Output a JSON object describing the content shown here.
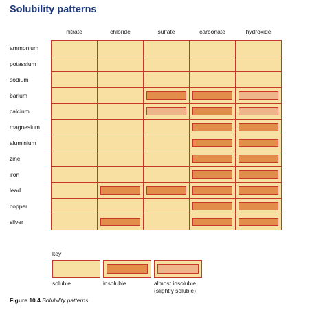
{
  "title": "Solubility patterns",
  "columns": [
    "nitrate",
    "chloride",
    "sulfate",
    "carbonate",
    "hydroxide"
  ],
  "rows": [
    {
      "label": "ammonium",
      "cells": [
        "soluble",
        "soluble",
        "soluble",
        "soluble",
        "soluble"
      ]
    },
    {
      "label": "potassium",
      "cells": [
        "soluble",
        "soluble",
        "soluble",
        "soluble",
        "soluble"
      ]
    },
    {
      "label": "sodium",
      "cells": [
        "soluble",
        "soluble",
        "soluble",
        "soluble",
        "soluble"
      ]
    },
    {
      "label": "barium",
      "cells": [
        "soluble",
        "soluble",
        "insoluble",
        "insoluble",
        "almost"
      ]
    },
    {
      "label": "calcium",
      "cells": [
        "soluble",
        "soluble",
        "almost",
        "insoluble",
        "almost"
      ]
    },
    {
      "label": "magnesium",
      "cells": [
        "soluble",
        "soluble",
        "soluble",
        "insoluble",
        "insoluble"
      ]
    },
    {
      "label": "aluminium",
      "cells": [
        "soluble",
        "soluble",
        "soluble",
        "insoluble",
        "insoluble"
      ]
    },
    {
      "label": "zinc",
      "cells": [
        "soluble",
        "soluble",
        "soluble",
        "insoluble",
        "insoluble"
      ]
    },
    {
      "label": "iron",
      "cells": [
        "soluble",
        "soluble",
        "soluble",
        "insoluble",
        "insoluble"
      ]
    },
    {
      "label": "lead",
      "cells": [
        "soluble",
        "insoluble",
        "insoluble",
        "insoluble",
        "insoluble"
      ]
    },
    {
      "label": "copper",
      "cells": [
        "soluble",
        "soluble",
        "soluble",
        "insoluble",
        "insoluble"
      ]
    },
    {
      "label": "silver",
      "cells": [
        "soluble",
        "insoluble",
        "soluble",
        "insoluble",
        "insoluble"
      ]
    }
  ],
  "key": {
    "label": "key",
    "soluble": "soluble",
    "insoluble": "insoluble",
    "almost_line1": "almost insoluble",
    "almost_line2": "(slightly soluble)"
  },
  "caption": {
    "figure": "Figure 10.4",
    "text": "Solubility patterns."
  },
  "colors": {
    "soluble_fill": "#f8e0a2",
    "insoluble_fill": "#e38d4a",
    "almost_fill": "#eeb58a",
    "border": "#c4392c",
    "title": "#1e3a7a"
  }
}
